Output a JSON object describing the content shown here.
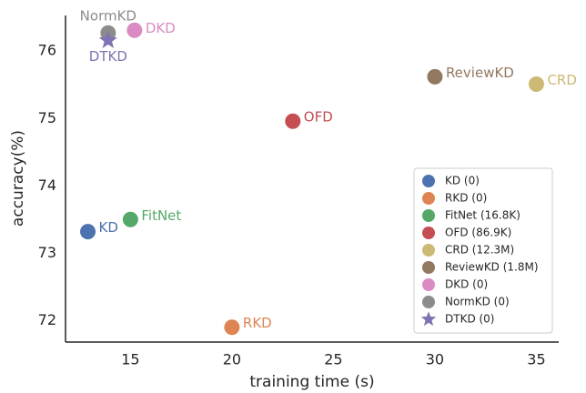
{
  "chart_data": {
    "type": "scatter",
    "xlabel": "training time (s)",
    "ylabel": "accuracy(%)",
    "xlim": [
      11.8,
      36.1
    ],
    "ylim": [
      71.68,
      76.53
    ],
    "xticks": [
      15,
      20,
      25,
      30,
      35
    ],
    "yticks": [
      72,
      73,
      74,
      75,
      76
    ],
    "grid": false,
    "legend": "lower right",
    "series": [
      {
        "name": "KD (0)",
        "label": "KD",
        "color": "#4c72b0",
        "marker": "circle",
        "x": [
          12.9
        ],
        "values": [
          73.32
        ]
      },
      {
        "name": "RKD (0)",
        "label": "RKD",
        "color": "#dd8452",
        "marker": "circle",
        "x": [
          20
        ],
        "values": [
          71.9
        ]
      },
      {
        "name": "FitNet (16.8K)",
        "label": "FitNet",
        "color": "#55a868",
        "marker": "circle",
        "x": [
          15
        ],
        "values": [
          73.5
        ]
      },
      {
        "name": "OFD (86.9K)",
        "label": "OFD",
        "color": "#c44e52",
        "marker": "circle",
        "x": [
          23
        ],
        "values": [
          74.96
        ]
      },
      {
        "name": "CRD (12.3M)",
        "label": "CRD",
        "color": "#ccb974",
        "marker": "circle",
        "x": [
          35
        ],
        "values": [
          75.51
        ]
      },
      {
        "name": "ReviewKD (1.8M)",
        "label": "ReviewKD",
        "color": "#937860",
        "marker": "circle",
        "x": [
          30
        ],
        "values": [
          75.62
        ]
      },
      {
        "name": "DKD (0)",
        "label": "DKD",
        "color": "#da8bc3",
        "marker": "circle",
        "x": [
          15.2
        ],
        "values": [
          76.31
        ]
      },
      {
        "name": "NormKD (0)",
        "label": "NormKD",
        "color": "#8c8c8c",
        "marker": "circle",
        "x": [
          13.9
        ],
        "values": [
          76.27
        ]
      },
      {
        "name": "DTKD (0)",
        "label": "DTKD",
        "color": "#8172b3",
        "marker": "star",
        "x": [
          13.9
        ],
        "values": [
          76.16
        ]
      }
    ]
  }
}
